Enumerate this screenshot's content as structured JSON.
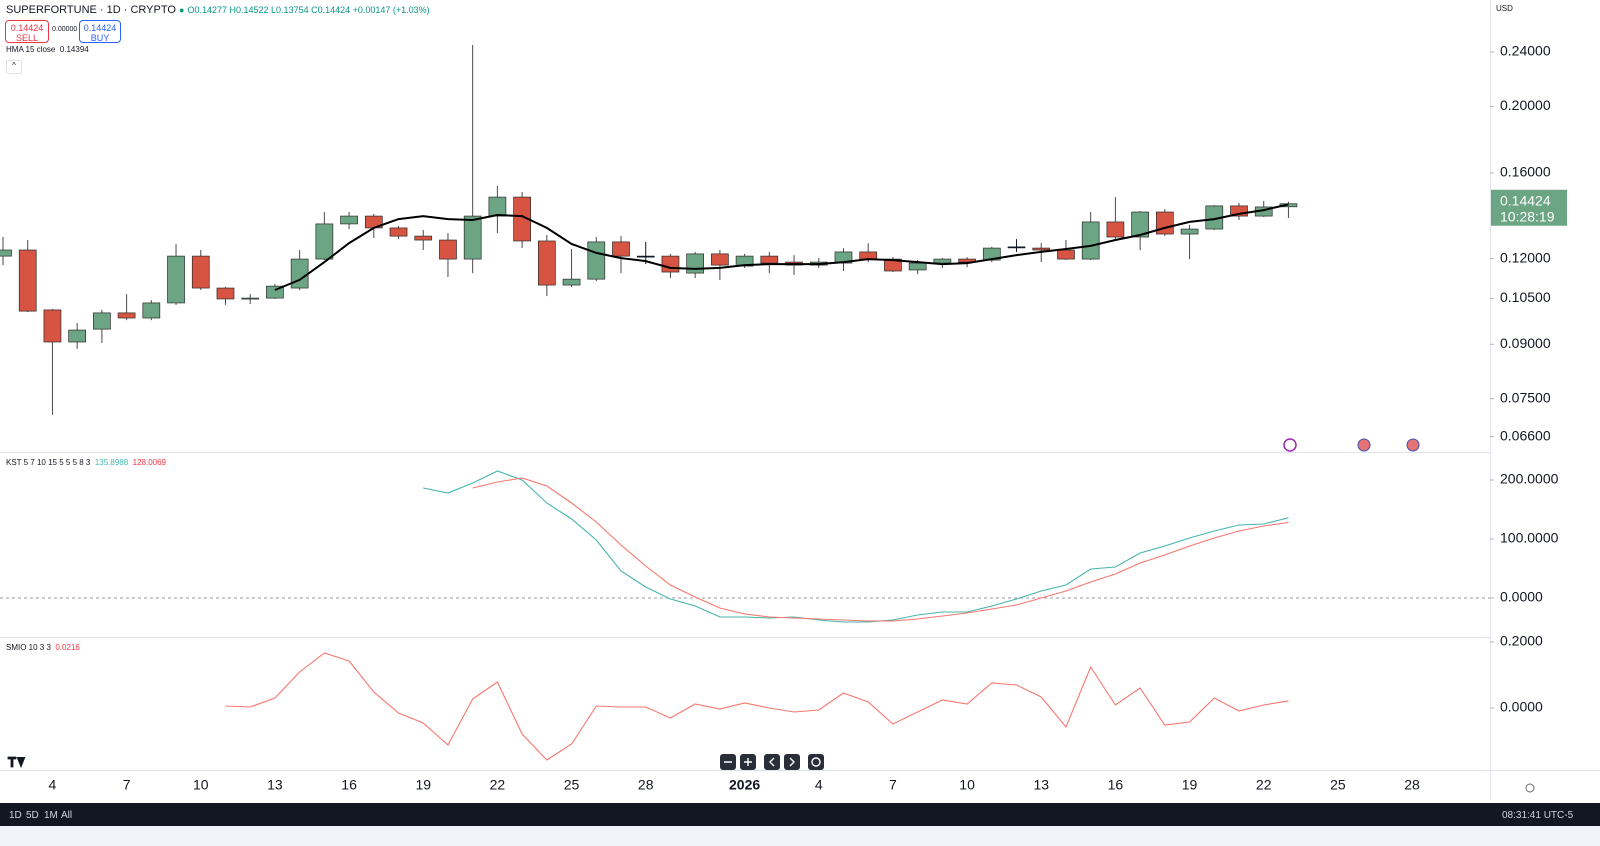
{
  "header": {
    "symbol": "SUPERFORTUNE · 1D · CRYPTO",
    "ohlc": "O0.14277 H0.14522 L0.13754 C0.14424 +0.00147 (+1.03%)"
  },
  "trade": {
    "sell_price": "0.14424",
    "sell": "SELL",
    "spread": "0.00000",
    "buy_price": "0.14424",
    "buy": "BUY"
  },
  "currency": "USD",
  "price_tag": {
    "value": 0.14424,
    "countdown": "10:28:19",
    "color": "#6ba583"
  },
  "timeframes": [
    "1D",
    "5D",
    "1M",
    "All"
  ],
  "clock": "08:31:41 UTC-5",
  "chart_data": [
    {
      "type": "candlestick",
      "log_scale": true,
      "grid": false,
      "categories": [
        null,
        null,
        "4",
        null,
        null,
        "7",
        null,
        null,
        "10",
        null,
        null,
        "13",
        null,
        null,
        "16",
        null,
        null,
        "19",
        null,
        null,
        "22",
        null,
        null,
        "25",
        null,
        null,
        "28",
        null,
        null,
        null,
        "2026",
        null,
        null,
        "4",
        null,
        null,
        "7",
        null,
        null,
        "10",
        null,
        null,
        "13",
        null,
        null,
        "16",
        null,
        null,
        "19",
        null,
        null,
        "22",
        null,
        null,
        "25",
        null,
        null,
        "28"
      ],
      "open": [
        0.121,
        0.1235,
        0.101,
        0.0907,
        0.0947,
        0.1,
        0.0983,
        0.1034,
        0.121,
        0.1087,
        0.1048,
        0.1051,
        0.1087,
        0.1198,
        0.1348,
        0.1384,
        0.133,
        0.1294,
        0.1277,
        0.1198,
        0.1384,
        0.1475,
        0.1273,
        0.1098,
        0.112,
        0.1269,
        0.121,
        0.121,
        0.1143,
        0.1219,
        0.117,
        0.121,
        0.1186,
        0.1174,
        0.1182,
        0.1227,
        0.1198,
        0.1155,
        0.1182,
        0.1198,
        0.1194,
        0.1248,
        0.1243,
        0.1235,
        0.1198,
        0.1357,
        0.129,
        0.1403,
        0.1303,
        0.1325,
        0.1432,
        0.1384,
        0.14277,
        null,
        null,
        null,
        null,
        null
      ],
      "high": [
        0.129,
        0.1277,
        0.1013,
        0.0967,
        0.101,
        0.1065,
        0.1044,
        0.126,
        0.1235,
        0.1091,
        0.1065,
        0.1102,
        0.1235,
        0.1403,
        0.1403,
        0.1394,
        0.1339,
        0.1321,
        0.1307,
        0.2457,
        0.1531,
        0.15,
        0.1299,
        0.1239,
        0.129,
        0.1294,
        0.1269,
        0.1219,
        0.1227,
        0.1235,
        0.1219,
        0.1227,
        0.1214,
        0.1202,
        0.1243,
        0.1264,
        0.1206,
        0.1194,
        0.1202,
        0.1206,
        0.1248,
        0.1281,
        0.1264,
        0.1277,
        0.1403,
        0.1475,
        0.1408,
        0.1417,
        0.1343,
        0.1436,
        0.1446,
        0.1456,
        0.14522,
        null,
        null,
        null,
        null,
        null
      ],
      "low": [
        0.1174,
        0.1003,
        0.071,
        0.0886,
        0.0904,
        0.0976,
        0.0976,
        0.1027,
        0.108,
        0.1027,
        0.103,
        0.1048,
        0.108,
        0.1194,
        0.1325,
        0.1286,
        0.1281,
        0.1235,
        0.1128,
        0.1143,
        0.1307,
        0.1243,
        0.1058,
        0.1091,
        0.1113,
        0.1143,
        0.1178,
        0.1124,
        0.1124,
        0.1117,
        0.1163,
        0.1143,
        0.1136,
        0.1163,
        0.1151,
        0.1186,
        0.1147,
        0.1139,
        0.1163,
        0.1166,
        0.1186,
        0.1227,
        0.1186,
        0.1194,
        0.1194,
        0.1277,
        0.1235,
        0.1294,
        0.1198,
        0.1321,
        0.1366,
        0.138,
        0.13754,
        null,
        null,
        null,
        null,
        null
      ],
      "close": [
        0.1235,
        0.1006,
        0.0907,
        0.0944,
        0.1,
        0.0983,
        0.1034,
        0.121,
        0.1087,
        0.1048,
        0.1051,
        0.1094,
        0.1198,
        0.1348,
        0.1384,
        0.133,
        0.1294,
        0.1277,
        0.1198,
        0.1384,
        0.1475,
        0.1273,
        0.1098,
        0.112,
        0.1269,
        0.121,
        0.121,
        0.1147,
        0.1219,
        0.1174,
        0.121,
        0.1182,
        0.1174,
        0.1186,
        0.1227,
        0.1198,
        0.1151,
        0.1182,
        0.1198,
        0.1186,
        0.1243,
        0.1248,
        0.1235,
        0.1198,
        0.1357,
        0.129,
        0.1403,
        0.1303,
        0.1325,
        0.1432,
        0.1384,
        0.1427,
        0.14424,
        null,
        null,
        null,
        null,
        null
      ],
      "up_color": "#6ba583",
      "down_color": "#d75442",
      "unchanged_color": "#131722",
      "series": [
        {
          "name": "HMA 15 close",
          "color": "#000000",
          "values": [
            null,
            null,
            null,
            null,
            null,
            null,
            null,
            null,
            null,
            null,
            null,
            0.108,
            0.1117,
            0.1186,
            0.1264,
            0.133,
            0.137,
            0.1384,
            0.137,
            0.1366,
            0.1389,
            0.1384,
            0.133,
            0.126,
            0.1223,
            0.1202,
            0.119,
            0.1163,
            0.1159,
            0.1163,
            0.1174,
            0.1178,
            0.1178,
            0.1178,
            0.1186,
            0.1198,
            0.1194,
            0.1186,
            0.1178,
            0.1182,
            0.1198,
            0.1214,
            0.1227,
            0.1239,
            0.1252,
            0.1277,
            0.1299,
            0.133,
            0.1357,
            0.137,
            0.1394,
            0.1412,
            0.14394,
            null,
            null,
            null,
            null,
            null
          ]
        }
      ],
      "ylim": [
        0.0627,
        0.2858
      ],
      "yticks": [
        {
          "value": 0.24,
          "label": "0.24000"
        },
        {
          "value": 0.2,
          "label": "0.20000"
        },
        {
          "value": 0.16,
          "label": "0.16000"
        },
        {
          "value": 0.12,
          "label": "0.12000"
        },
        {
          "value": 0.105,
          "label": "0.10500"
        },
        {
          "value": 0.09,
          "label": "0.09000"
        },
        {
          "value": 0.075,
          "label": "0.07500"
        },
        {
          "value": 0.066,
          "label": "0.06600"
        }
      ]
    },
    {
      "type": "line",
      "title": "KST 5 7 10 15 5 5 5 8 3",
      "zero_line": true,
      "series": [
        {
          "color": "#45b5ad",
          "values": [
            null,
            null,
            null,
            null,
            null,
            null,
            null,
            null,
            null,
            null,
            null,
            null,
            null,
            null,
            null,
            null,
            null,
            186.4,
            178.0,
            194.9,
            215.3,
            200.0,
            161.0,
            133.9,
            98.3,
            45.8,
            18.6,
            -1.7,
            -13.6,
            -32.2,
            -32.2,
            -33.9,
            -32.2,
            -37.3,
            -40.7,
            -40.7,
            -37.3,
            -28.8,
            -23.7,
            -23.7,
            -13.6,
            -1.7,
            11.9,
            22.0,
            49.2,
            52.5,
            76.3,
            88.1,
            101.7,
            113.6,
            123.7,
            125.4,
            135.8988,
            null,
            null,
            null,
            null,
            null
          ]
        },
        {
          "color": "#f7776f",
          "values": [
            null,
            null,
            null,
            null,
            null,
            null,
            null,
            null,
            null,
            null,
            null,
            null,
            null,
            null,
            null,
            null,
            null,
            null,
            null,
            186.4,
            196.6,
            203.4,
            189.8,
            161.0,
            128.8,
            89.8,
            54.2,
            22.0,
            1.7,
            -16.9,
            -27.1,
            -32.2,
            -33.9,
            -35.6,
            -37.3,
            -39.0,
            -39.0,
            -35.6,
            -30.5,
            -25.4,
            -18.6,
            -11.9,
            0.0,
            11.9,
            27.1,
            40.7,
            59.3,
            72.9,
            88.1,
            101.7,
            113.6,
            122.0,
            128.0069,
            null,
            null,
            null,
            null,
            null
          ]
        }
      ],
      "ylim": [
        -66.1,
        245.8
      ],
      "yticks": [
        {
          "value": 200,
          "label": "200.0000"
        },
        {
          "value": 100,
          "label": "100.0000"
        },
        {
          "value": 0,
          "label": "0.0000"
        }
      ]
    },
    {
      "type": "line",
      "title": "SMIO 10 3 3",
      "series": [
        {
          "color": "#f7776f",
          "values": [
            null,
            null,
            null,
            null,
            null,
            null,
            null,
            null,
            null,
            0.0061,
            0.003,
            0.0303,
            0.1091,
            0.1667,
            0.1424,
            0.0485,
            -0.0152,
            -0.0455,
            -0.1121,
            0.0273,
            0.0788,
            -0.0788,
            -0.1576,
            -0.1091,
            0.0061,
            0.003,
            0.003,
            -0.0303,
            0.0121,
            -0.003,
            0.0152,
            0.0,
            -0.0121,
            -0.0061,
            0.0455,
            0.0182,
            -0.0485,
            -0.0121,
            0.0242,
            0.0121,
            0.0758,
            0.0697,
            0.0333,
            -0.0576,
            0.1242,
            0.0091,
            0.0606,
            -0.0515,
            -0.0424,
            0.0303,
            -0.0091,
            0.0091,
            0.0216,
            null,
            null,
            null,
            null,
            null
          ]
        }
      ],
      "ylim": [
        -0.1879,
        0.2121
      ],
      "yticks": [
        {
          "value": 0.2,
          "label": "0.2000"
        },
        {
          "value": 0,
          "label": "0.0000"
        }
      ]
    }
  ]
}
